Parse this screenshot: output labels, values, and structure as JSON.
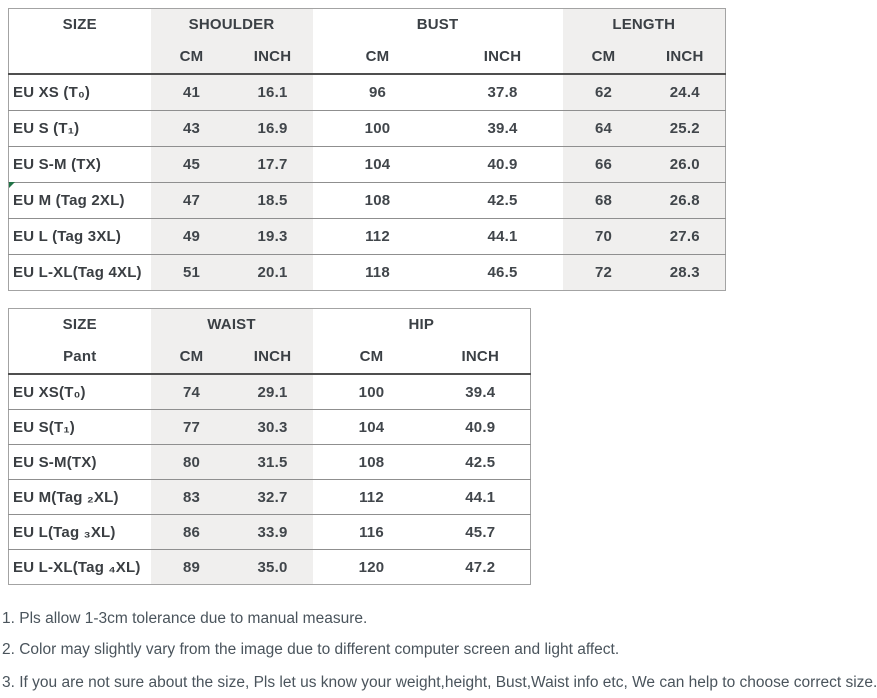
{
  "table1": {
    "size_header": "SIZE",
    "groups": {
      "shoulder": "SHOULDER",
      "bust": "BUST",
      "length": "LENGTH"
    },
    "units": {
      "cm": "CM",
      "inch": "INCH"
    },
    "rows": [
      {
        "size": "EU XS (T₀)",
        "values": [
          "41",
          "16.1",
          "96",
          "37.8",
          "62",
          "24.4"
        ]
      },
      {
        "size": "EU S (T₁)",
        "values": [
          "43",
          "16.9",
          "100",
          "39.4",
          "64",
          "25.2"
        ]
      },
      {
        "size": "EU S-M (TX)",
        "values": [
          "45",
          "17.7",
          "104",
          "40.9",
          "66",
          "26.0"
        ]
      },
      {
        "size": "EU M (Tag 2XL)",
        "values": [
          "47",
          "18.5",
          "108",
          "42.5",
          "68",
          "26.8"
        ]
      },
      {
        "size": "EU L (Tag 3XL)",
        "values": [
          "49",
          "19.3",
          "112",
          "44.1",
          "70",
          "27.6"
        ]
      },
      {
        "size": "EU L-XL(Tag 4XL)",
        "values": [
          "51",
          "20.1",
          "118",
          "46.5",
          "72",
          "28.3"
        ]
      }
    ]
  },
  "table2": {
    "size_header": "SIZE",
    "size_subheader": "Pant",
    "groups": {
      "waist": "WAIST",
      "hip": "HIP"
    },
    "units": {
      "cm": "CM",
      "inch": "INCH"
    },
    "rows": [
      {
        "size": "EU XS(T₀)",
        "values": [
          "74",
          "29.1",
          "100",
          "39.4"
        ]
      },
      {
        "size": "EU S(T₁)",
        "values": [
          "77",
          "30.3",
          "104",
          "40.9"
        ]
      },
      {
        "size": "EU S-M(TX)",
        "values": [
          "80",
          "31.5",
          "108",
          "42.5"
        ]
      },
      {
        "size": "EU M(Tag ₂XL)",
        "values": [
          "83",
          "32.7",
          "112",
          "44.1"
        ]
      },
      {
        "size": "EU L(Tag ₃XL)",
        "values": [
          "86",
          "33.9",
          "116",
          "45.7"
        ]
      },
      {
        "size": "EU L-XL(Tag ₄XL)",
        "values": [
          "89",
          "35.0",
          "120",
          "47.2"
        ]
      }
    ]
  },
  "notes": {
    "items": [
      "1. Pls allow 1-3cm tolerance due to manual measure.",
      "2. Color may slightly vary from the image due to different computer screen and light affect.",
      "3. If you are not sure about the size, Pls let us know your weight,height, Bust,Waist info etc, We can help to choose correct size."
    ]
  },
  "colors": {
    "column_shade": "#f0efee",
    "table_border": "#a3a3a3",
    "row_line": "#8f8f8f",
    "header_line": "#4f4f4f",
    "table_text": "#41464b",
    "note_text": "#4a545c",
    "marker_green": "#217346"
  }
}
